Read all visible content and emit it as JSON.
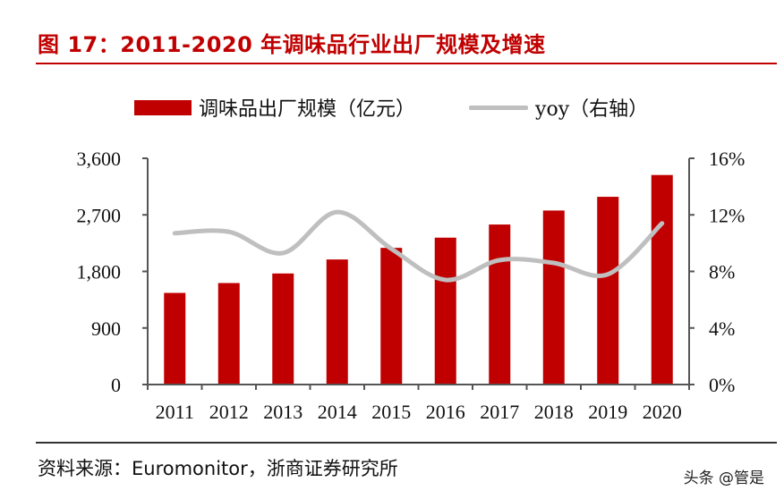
{
  "title": "图 17：2011-2020 年调味品行业出厂规模及增速",
  "source": "资料来源：Euromonitor，浙商证券研究所",
  "watermark": "头条 @管是",
  "chart_data": {
    "type": "bar+line",
    "categories": [
      "2011",
      "2012",
      "2013",
      "2014",
      "2015",
      "2016",
      "2017",
      "2018",
      "2019",
      "2020"
    ],
    "series": [
      {
        "name": "调味品出厂规模（亿元）",
        "type": "bar",
        "axis": "left",
        "color": "#c00000",
        "values": [
          1458,
          1615,
          1767,
          1990,
          2175,
          2337,
          2546,
          2769,
          2987,
          3334
        ]
      },
      {
        "name": "yoy（右轴）",
        "type": "line",
        "axis": "right",
        "color": "#bfbfbf",
        "values": [
          10.7,
          10.8,
          9.3,
          12.2,
          9.6,
          7.4,
          8.8,
          8.6,
          7.8,
          11.4
        ]
      }
    ],
    "left_axis": {
      "ylim": [
        0,
        3600
      ],
      "ticks": [
        "0",
        "900",
        "1,800",
        "2,700",
        "3,600"
      ]
    },
    "right_axis": {
      "ylim": [
        0,
        16
      ],
      "ticks": [
        "0%",
        "4%",
        "8%",
        "12%",
        "16%"
      ]
    },
    "grid": false,
    "legend": "top"
  }
}
